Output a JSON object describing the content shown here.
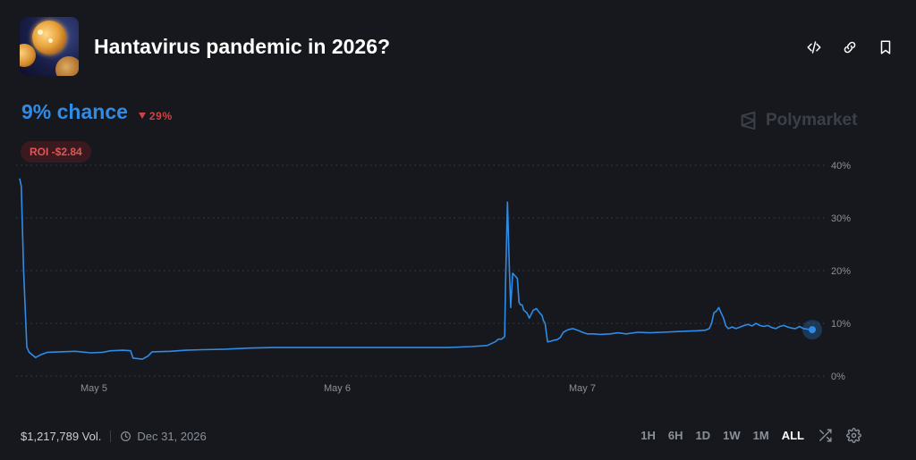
{
  "market": {
    "title": "Hantavirus pandemic in 2026?",
    "thumbnail_icon": "virus-image"
  },
  "header_actions": [
    "embed-icon",
    "link-icon",
    "bookmark-icon"
  ],
  "odds": {
    "chance_text": "9% chance",
    "delta_text": "29%",
    "delta_direction": "down",
    "roi_text": "ROI -$2.84"
  },
  "watermark": {
    "text": "Polymarket"
  },
  "colors": {
    "accent": "#2e8ce6",
    "negative": "#d14343",
    "grid": "#3a3f47",
    "background": "#16181d"
  },
  "chart_data": {
    "type": "line",
    "title": "",
    "xlabel": "",
    "ylabel": "",
    "x_tick_labels": [
      "May 5",
      "May 6",
      "May 7"
    ],
    "y_tick_labels": [
      "40%",
      "30%",
      "20%",
      "10%",
      "0%"
    ],
    "ylim": [
      0,
      40
    ],
    "grid": true,
    "series": [
      {
        "color": "#2e8ce6",
        "points": [
          [
            0.0,
            37.5
          ],
          [
            0.2,
            36.0
          ],
          [
            0.5,
            20.0
          ],
          [
            0.9,
            5.5
          ],
          [
            1.2,
            4.5
          ],
          [
            1.6,
            4.0
          ],
          [
            2.0,
            3.5
          ],
          [
            2.6,
            4.0
          ],
          [
            3.5,
            4.5
          ],
          [
            5.0,
            4.6
          ],
          [
            7.0,
            4.7
          ],
          [
            9.0,
            4.4
          ],
          [
            10.5,
            4.5
          ],
          [
            11.5,
            4.8
          ],
          [
            13.0,
            4.9
          ],
          [
            14.0,
            4.8
          ],
          [
            14.3,
            3.4
          ],
          [
            15.5,
            3.2
          ],
          [
            16.2,
            3.8
          ],
          [
            16.7,
            4.6
          ],
          [
            19.0,
            4.7
          ],
          [
            21.0,
            4.9
          ],
          [
            23.0,
            5.0
          ],
          [
            26.0,
            5.1
          ],
          [
            29.0,
            5.3
          ],
          [
            32.0,
            5.4
          ],
          [
            36.0,
            5.4
          ],
          [
            42.0,
            5.4
          ],
          [
            48.0,
            5.4
          ],
          [
            54.0,
            5.4
          ],
          [
            57.0,
            5.6
          ],
          [
            59.0,
            5.8
          ],
          [
            60.0,
            6.5
          ],
          [
            60.4,
            7.0
          ],
          [
            60.8,
            7.0
          ],
          [
            61.2,
            7.5
          ],
          [
            61.3,
            17.0
          ],
          [
            61.55,
            33.0
          ],
          [
            61.8,
            20.0
          ],
          [
            61.95,
            13.0
          ],
          [
            62.2,
            19.5
          ],
          [
            62.5,
            19.0
          ],
          [
            62.8,
            18.5
          ],
          [
            63.0,
            14.0
          ],
          [
            63.2,
            13.5
          ],
          [
            63.4,
            13.5
          ],
          [
            63.6,
            12.5
          ],
          [
            64.0,
            12.0
          ],
          [
            64.3,
            11.0
          ],
          [
            64.8,
            12.5
          ],
          [
            65.2,
            12.8
          ],
          [
            65.6,
            12.0
          ],
          [
            65.9,
            11.5
          ],
          [
            66.1,
            10.5
          ],
          [
            66.3,
            10.0
          ],
          [
            66.6,
            6.5
          ],
          [
            67.0,
            6.6
          ],
          [
            67.4,
            6.8
          ],
          [
            67.8,
            6.9
          ],
          [
            68.2,
            7.3
          ],
          [
            68.6,
            8.3
          ],
          [
            69.2,
            8.8
          ],
          [
            69.8,
            9.0
          ],
          [
            70.4,
            8.7
          ],
          [
            71.0,
            8.3
          ],
          [
            71.6,
            8.0
          ],
          [
            72.4,
            8.0
          ],
          [
            73.2,
            7.9
          ],
          [
            74.5,
            8.0
          ],
          [
            75.5,
            8.2
          ],
          [
            76.5,
            8.0
          ],
          [
            78.0,
            8.3
          ],
          [
            79.5,
            8.2
          ],
          [
            81.0,
            8.3
          ],
          [
            82.5,
            8.4
          ],
          [
            84.0,
            8.5
          ],
          [
            85.5,
            8.6
          ],
          [
            86.5,
            8.7
          ],
          [
            87.0,
            9.0
          ],
          [
            87.3,
            10.0
          ],
          [
            87.6,
            12.0
          ],
          [
            87.9,
            12.3
          ],
          [
            88.2,
            13.0
          ],
          [
            88.5,
            12.0
          ],
          [
            88.8,
            11.0
          ],
          [
            89.1,
            9.5
          ],
          [
            89.4,
            9.0
          ],
          [
            89.9,
            9.3
          ],
          [
            90.4,
            9.0
          ],
          [
            90.9,
            9.3
          ],
          [
            91.4,
            9.6
          ],
          [
            91.9,
            9.8
          ],
          [
            92.4,
            9.5
          ],
          [
            92.9,
            10.0
          ],
          [
            93.4,
            9.6
          ],
          [
            93.9,
            9.4
          ],
          [
            94.4,
            9.6
          ],
          [
            94.9,
            9.2
          ],
          [
            95.4,
            9.0
          ],
          [
            95.9,
            9.4
          ],
          [
            96.4,
            9.6
          ],
          [
            96.9,
            9.3
          ],
          [
            97.4,
            9.1
          ],
          [
            97.9,
            9.0
          ],
          [
            98.4,
            9.4
          ],
          [
            98.9,
            9.0
          ],
          [
            99.4,
            8.9
          ],
          [
            100.0,
            8.8
          ]
        ]
      }
    ]
  },
  "footer": {
    "volume": "$1,217,789 Vol.",
    "end_date": "Dec 31, 2026",
    "ranges": [
      "1H",
      "6H",
      "1D",
      "1W",
      "1M",
      "ALL"
    ],
    "active_range": "ALL"
  }
}
